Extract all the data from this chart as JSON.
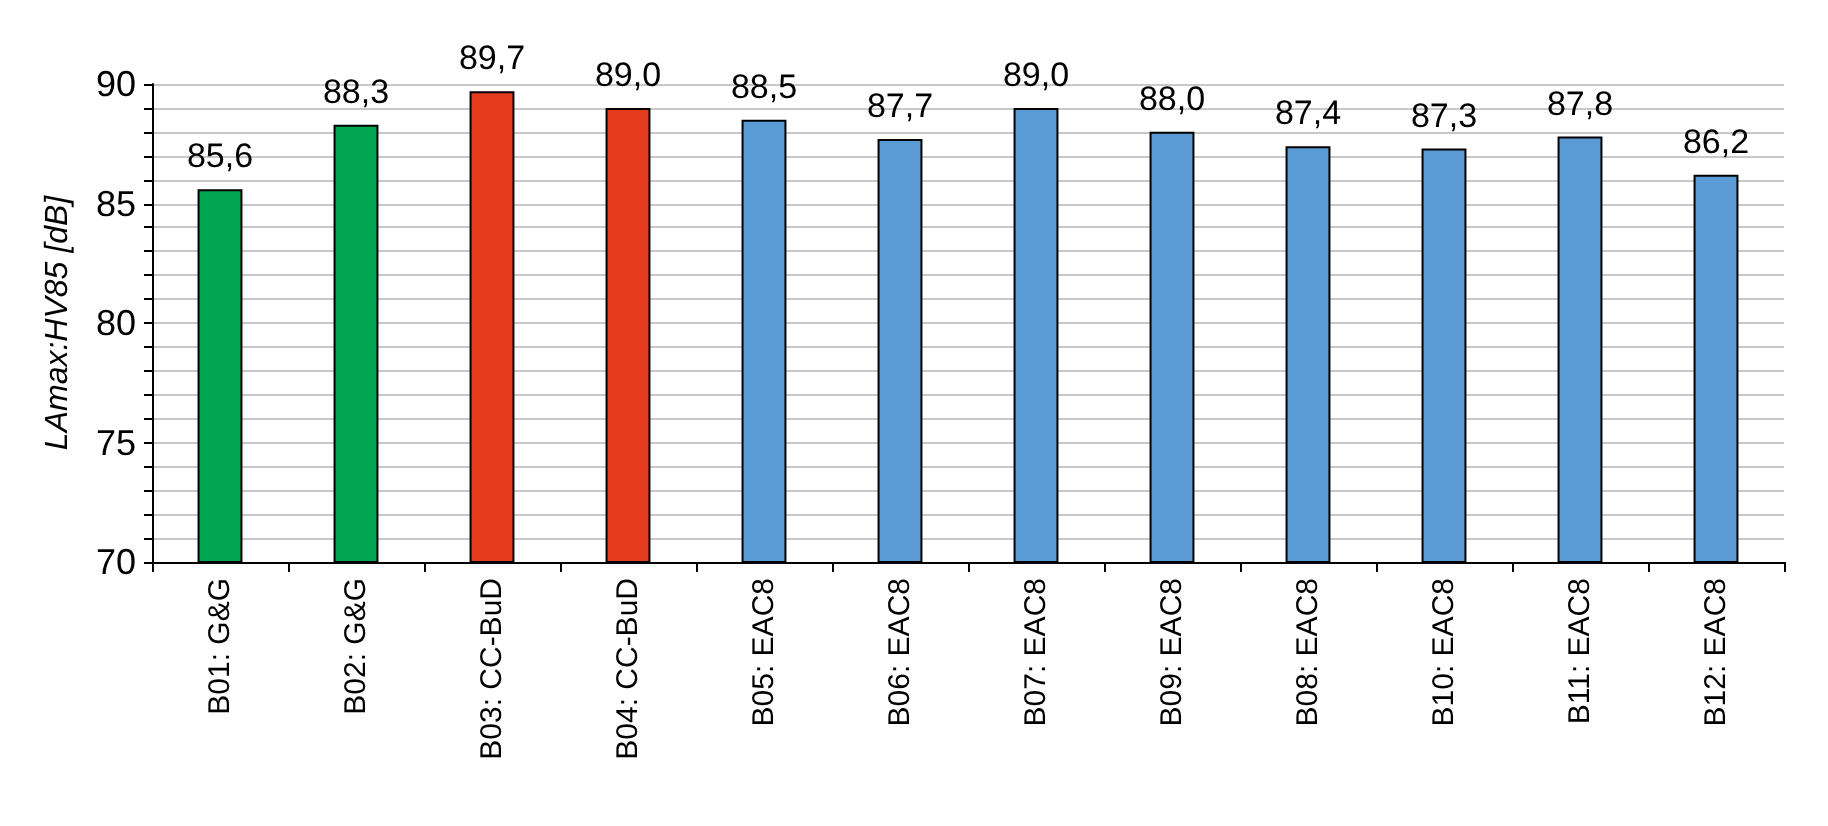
{
  "chart_data": {
    "type": "bar",
    "ylabel": "LAmax:HV85 [dB]",
    "categories": [
      "B01: G&G",
      "B02: G&G",
      "B03: CC-BuD",
      "B04: CC-BuD",
      "B05: EAC8",
      "B06: EAC8",
      "B07: EAC8",
      "B09: EAC8",
      "B08: EAC8",
      "B10: EAC8",
      "B11: EAC8",
      "B12: EAC8"
    ],
    "values": [
      85.6,
      88.3,
      89.7,
      89.0,
      88.5,
      87.7,
      89.0,
      88.0,
      87.4,
      87.3,
      87.8,
      86.2
    ],
    "colors": [
      "#00a651",
      "#00a651",
      "#e63c1e",
      "#e63c1e",
      "#5b9bd5",
      "#5b9bd5",
      "#5b9bd5",
      "#5b9bd5",
      "#5b9bd5",
      "#5b9bd5",
      "#5b9bd5",
      "#5b9bd5"
    ],
    "value_labels": [
      "85,6",
      "88,3",
      "89,7",
      "89,0",
      "88,5",
      "87,7",
      "89,0",
      "88,0",
      "87,4",
      "87,3",
      "87,8",
      "86,2"
    ],
    "ylim": [
      70,
      90
    ],
    "yticks": [
      70,
      {
        "value": 71,
        "label": null
      },
      {
        "value": 72,
        "label": null
      },
      {
        "value": 73,
        "label": null
      },
      {
        "value": 74,
        "label": null
      },
      75,
      {
        "value": 76,
        "label": null
      },
      {
        "value": 77,
        "label": null
      },
      {
        "value": 78,
        "label": null
      },
      {
        "value": 79,
        "label": null
      },
      80,
      {
        "value": 81,
        "label": null
      },
      {
        "value": 82,
        "label": null
      },
      {
        "value": 83,
        "label": null
      },
      {
        "value": 84,
        "label": null
      },
      85,
      {
        "value": 86,
        "label": null
      },
      {
        "value": 87,
        "label": null
      },
      {
        "value": 88,
        "label": null
      },
      {
        "value": 89,
        "label": null
      },
      90
    ],
    "grid": "y"
  }
}
